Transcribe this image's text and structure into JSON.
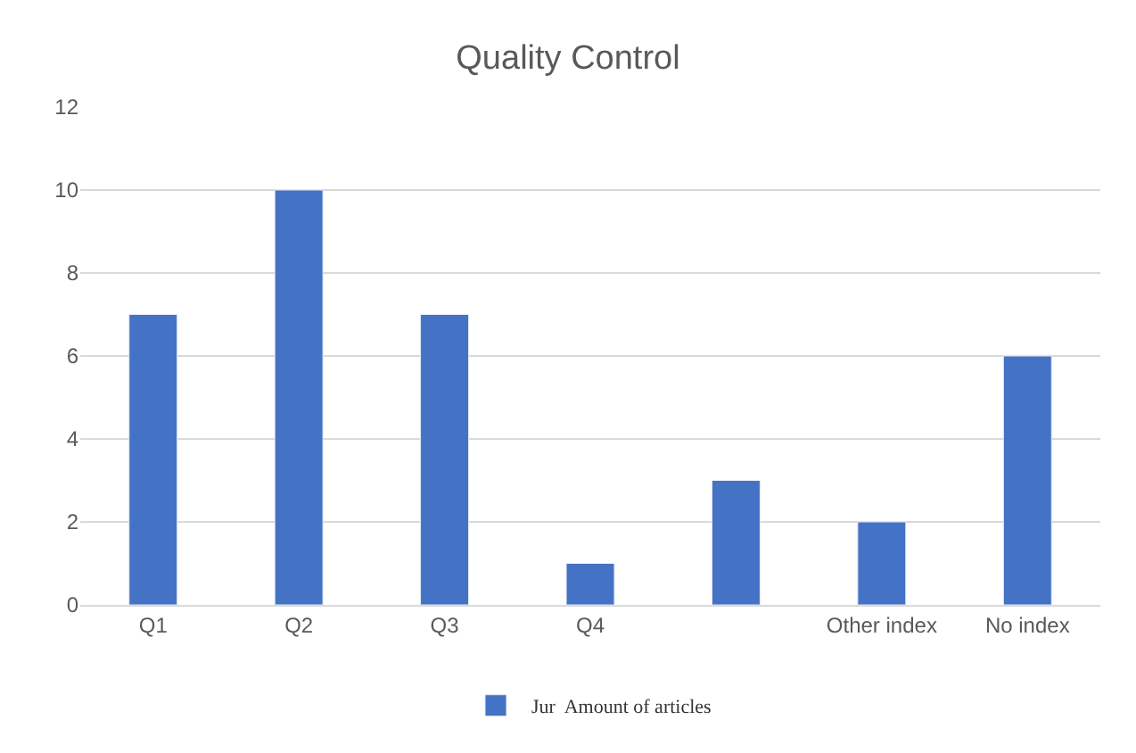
{
  "chart_data": {
    "type": "bar",
    "title": "Quality Control",
    "categories": [
      "Q1",
      "Q2",
      "Q3",
      "Q4",
      null,
      "Other index",
      "No index"
    ],
    "series": [
      {
        "name": "Jur  Amount of articles",
        "color": "#4472c4",
        "values": [
          7,
          10,
          7,
          1,
          3,
          2,
          6
        ]
      }
    ],
    "ylim": [
      0,
      12
    ],
    "yticks": [
      0,
      2,
      4,
      6,
      8,
      10,
      12
    ],
    "grid": "y",
    "legend": "bottom"
  }
}
